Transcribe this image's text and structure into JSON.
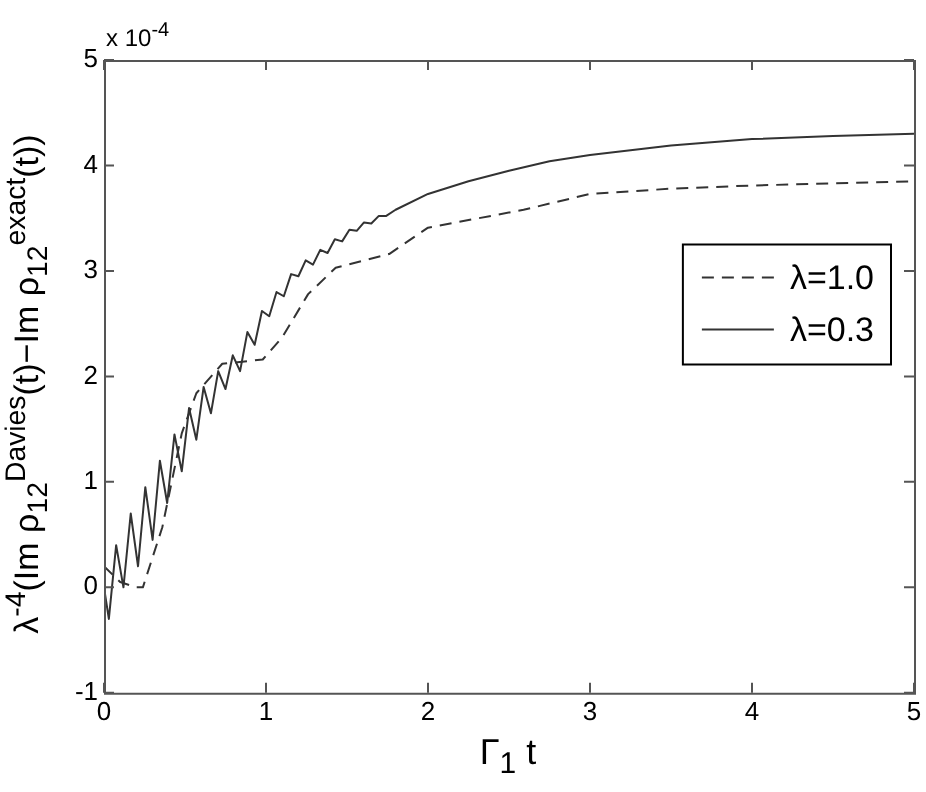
{
  "chart_data": {
    "type": "line",
    "xlabel": "Γ$_{1}$ t",
    "ylabel": "λ$^{-4}$(Im ρ$_{12}$$^{Davies}$(t)−Im ρ$_{12}$$^{exact}$(t))",
    "annotations": [
      "x 10$^{-4}$"
    ],
    "xlim": [
      0,
      5
    ],
    "xticks": [
      0,
      1,
      2,
      3,
      4,
      5
    ],
    "ylim": [
      -1,
      5
    ],
    "yticks": [
      -1,
      0,
      1,
      2,
      3,
      4,
      5
    ],
    "grid": false,
    "legend": "right",
    "marker": "none",
    "series": [
      {
        "name": "λ=1.0",
        "color": "#333333",
        "line_style": "dashed",
        "x": [
          0,
          0.1,
          0.2,
          0.24,
          0.36,
          0.48,
          0.57,
          0.73,
          0.98,
          1.1,
          1.26,
          1.43,
          1.76,
          2.0,
          2.59,
          3.0,
          3.5,
          4.0,
          4.5,
          5.0
        ],
        "values": [
          0.2,
          0.05,
          0.0,
          0.0,
          0.57,
          1.46,
          1.84,
          2.12,
          2.16,
          2.37,
          2.78,
          3.03,
          3.16,
          3.41,
          3.58,
          3.73,
          3.78,
          3.81,
          3.83,
          3.85
        ]
      },
      {
        "name": "λ=0.3",
        "color": "#333333",
        "line_style": "solid",
        "x": [
          0,
          0.03,
          0.075,
          0.12,
          0.165,
          0.21,
          0.255,
          0.3,
          0.345,
          0.39,
          0.435,
          0.48,
          0.525,
          0.57,
          0.615,
          0.66,
          0.705,
          0.75,
          0.795,
          0.84,
          0.885,
          0.93,
          0.975,
          1.02,
          1.065,
          1.11,
          1.155,
          1.2,
          1.245,
          1.29,
          1.335,
          1.38,
          1.425,
          1.47,
          1.515,
          1.56,
          1.605,
          1.65,
          1.695,
          1.74,
          1.8,
          2.0,
          2.25,
          2.5,
          2.75,
          3.0,
          3.5,
          4.0,
          4.5,
          5.0
        ],
        "values": [
          0,
          -0.3,
          0.4,
          0.0,
          0.7,
          0.2,
          0.95,
          0.45,
          1.2,
          0.8,
          1.45,
          1.1,
          1.7,
          1.4,
          1.9,
          1.65,
          2.05,
          1.88,
          2.2,
          2.05,
          2.42,
          2.3,
          2.62,
          2.57,
          2.8,
          2.76,
          2.97,
          2.95,
          3.1,
          3.06,
          3.2,
          3.17,
          3.3,
          3.28,
          3.39,
          3.38,
          3.46,
          3.45,
          3.52,
          3.52,
          3.58,
          3.73,
          3.85,
          3.95,
          4.04,
          4.1,
          4.19,
          4.25,
          4.28,
          4.3
        ]
      }
    ]
  }
}
